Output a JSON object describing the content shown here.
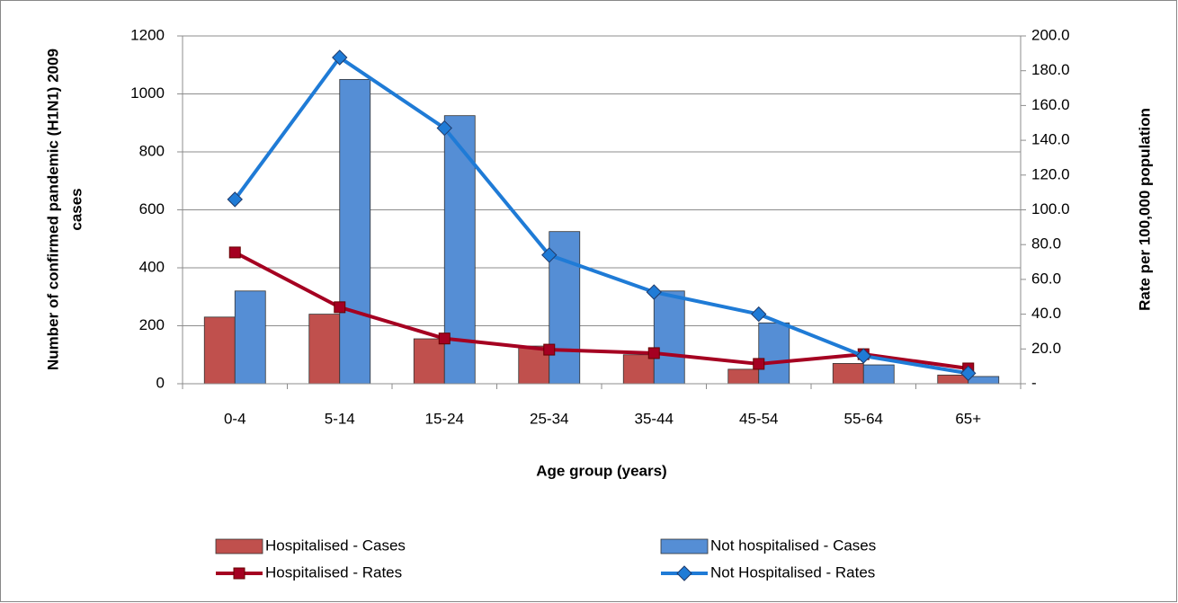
{
  "chart_data": {
    "type": "bar",
    "xlabel": "Age group  (years)",
    "ylabel": [
      "Number of confirmed pandemic (H1N1) 2009",
      "cases"
    ],
    "y2label": "Rate per 100,000 population",
    "categories": [
      "0-4",
      "5-14",
      "15-24",
      "25-34",
      "35-44",
      "45-54",
      "55-64",
      "65+"
    ],
    "series": [
      {
        "name": "Hospitalised - Cases",
        "type": "bar",
        "color": "#c0504d",
        "values": [
          230,
          240,
          155,
          130,
          100,
          50,
          70,
          30
        ]
      },
      {
        "name": "Not hospitalised - Cases",
        "type": "bar",
        "color": "#558ed5",
        "values": [
          320,
          1050,
          925,
          525,
          320,
          210,
          65,
          25
        ]
      },
      {
        "name": "Hospitalised - Rates",
        "type": "line",
        "marker": "square",
        "axis": "y2",
        "color": "#a50021",
        "values": [
          75.5,
          44,
          26,
          19.6,
          17.6,
          11.4,
          17,
          8.8
        ]
      },
      {
        "name": "Not Hospitalised - Rates",
        "type": "line",
        "marker": "diamond",
        "axis": "y2",
        "color": "#1f7bd6",
        "values": [
          106,
          187.6,
          147,
          74,
          52.7,
          40,
          16,
          6
        ]
      }
    ],
    "ylim": [
      0,
      1200
    ],
    "yticks": [
      0,
      200,
      400,
      600,
      800,
      1000,
      1200
    ],
    "y2lim": [
      0,
      200
    ],
    "y2ticks": [
      {
        "value": 0,
        "label": "-"
      },
      {
        "value": 20,
        "label": "20.0"
      },
      {
        "value": 40,
        "label": "40.0"
      },
      {
        "value": 60,
        "label": "60.0"
      },
      {
        "value": 80,
        "label": "80.0"
      },
      {
        "value": 100,
        "label": "100.0"
      },
      {
        "value": 120,
        "label": "120.0"
      },
      {
        "value": 140,
        "label": "140.0"
      },
      {
        "value": 160,
        "label": "160.0"
      },
      {
        "value": 180,
        "label": "180.0"
      },
      {
        "value": 200,
        "label": "200.0"
      }
    ],
    "grid": true,
    "legend": "bottom"
  }
}
